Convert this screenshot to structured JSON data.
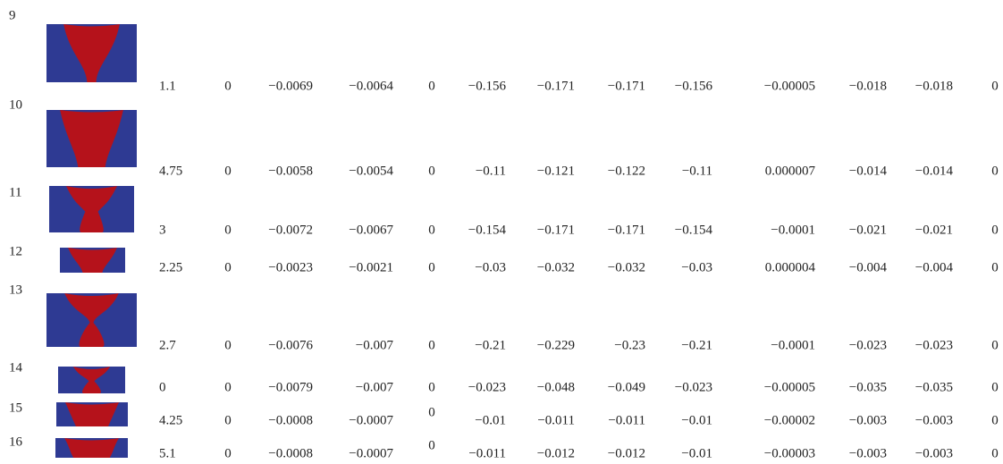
{
  "table": {
    "rows": [
      {
        "label": "9",
        "cells": [
          "1.1",
          "0",
          "−0.0069",
          "−0.0064",
          "0",
          "−0.156",
          "−0.171",
          "−0.171",
          "−0.156",
          "−0.00005",
          "−0.018",
          "−0.018",
          "0"
        ]
      },
      {
        "label": "10",
        "cells": [
          "4.75",
          "0",
          "−0.0058",
          "−0.0054",
          "0",
          "−0.11",
          "−0.121",
          "−0.122",
          "−0.11",
          "0.000007",
          "−0.014",
          "−0.014",
          "0"
        ]
      },
      {
        "label": "11",
        "cells": [
          "3",
          "0",
          "−0.0072",
          "−0.0067",
          "0",
          "−0.154",
          "−0.171",
          "−0.171",
          "−0.154",
          "−0.0001",
          "−0.021",
          "−0.021",
          "0"
        ]
      },
      {
        "label": "12",
        "cells": [
          "2.25",
          "0",
          "−0.0023",
          "−0.0021",
          "0",
          "−0.03",
          "−0.032",
          "−0.032",
          "−0.03",
          "0.000004",
          "−0.004",
          "−0.004",
          "0"
        ]
      },
      {
        "label": "13",
        "cells": [
          "2.7",
          "0",
          "−0.0076",
          "−0.007",
          "0",
          "−0.21",
          "−0.229",
          "−0.23",
          "−0.21",
          "−0.0001",
          "−0.023",
          "−0.023",
          "0"
        ]
      },
      {
        "label": "14",
        "cells": [
          "0",
          "0",
          "−0.0079",
          "−0.007",
          "0",
          "−0.023",
          "−0.048",
          "−0.049",
          "−0.023",
          "−0.00005",
          "−0.035",
          "−0.035",
          "0"
        ]
      },
      {
        "label": "15",
        "cells": [
          "4.25",
          "0",
          "−0.0008",
          "−0.0007",
          "0",
          "−0.01",
          "−0.011",
          "−0.011",
          "−0.01",
          "−0.00002",
          "−0.003",
          "−0.003",
          "0"
        ]
      },
      {
        "label": "16",
        "cells": [
          "5.1",
          "0",
          "−0.0008",
          "−0.0007",
          "0",
          "−0.011",
          "−0.012",
          "−0.012",
          "−0.01",
          "−0.00003",
          "−0.003",
          "−0.003",
          "0"
        ]
      }
    ]
  }
}
